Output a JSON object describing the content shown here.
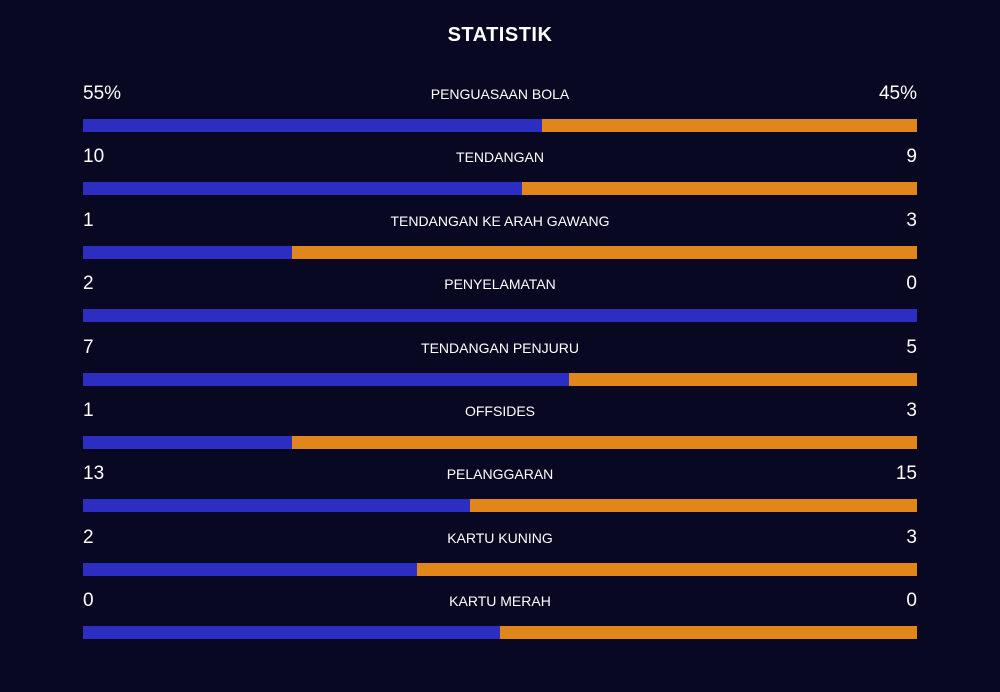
{
  "title": "STATISTIK",
  "colors": {
    "background": "#080823",
    "home_bar": "#2b2ec0",
    "away_bar": "#e0861a",
    "text": "#ffffff"
  },
  "stats": [
    {
      "label": "PENGUASAAN BOLA",
      "home": "55%",
      "away": "45%",
      "home_share": 0.55
    },
    {
      "label": "TENDANGAN",
      "home": "10",
      "away": "9",
      "home_share": 0.526
    },
    {
      "label": "TENDANGAN KE ARAH GAWANG",
      "home": "1",
      "away": "3",
      "home_share": 0.25
    },
    {
      "label": "PENYELAMATAN",
      "home": "2",
      "away": "0",
      "home_share": 1.0
    },
    {
      "label": "TENDANGAN PENJURU",
      "home": "7",
      "away": "5",
      "home_share": 0.583
    },
    {
      "label": "OFFSIDES",
      "home": "1",
      "away": "3",
      "home_share": 0.25
    },
    {
      "label": "PELANGGARAN",
      "home": "13",
      "away": "15",
      "home_share": 0.464
    },
    {
      "label": "KARTU KUNING",
      "home": "2",
      "away": "3",
      "home_share": 0.4
    },
    {
      "label": "KARTU MERAH",
      "home": "0",
      "away": "0",
      "home_share": 0.5
    }
  ]
}
